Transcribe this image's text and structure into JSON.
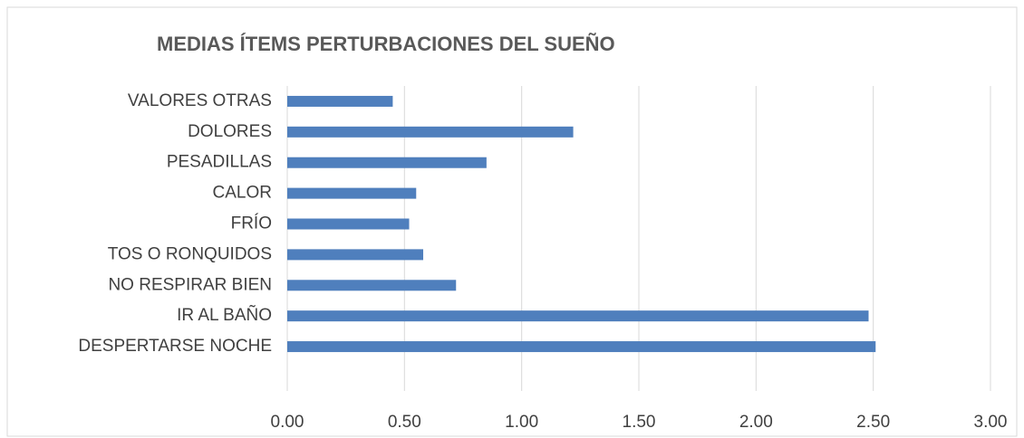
{
  "chart_data": {
    "type": "bar",
    "orientation": "horizontal",
    "title": "MEDIAS ÍTEMS PERTURBACIONES DEL SUEÑO",
    "categories": [
      "VALORES OTRAS",
      "DOLORES",
      "PESADILLAS",
      "CALOR",
      "FRÍO",
      "TOS O RONQUIDOS",
      "NO RESPIRAR BIEN",
      "IR AL BAÑO",
      "DESPERTARSE NOCHE"
    ],
    "values": [
      0.45,
      1.22,
      0.85,
      0.55,
      0.52,
      0.58,
      0.72,
      2.48,
      2.51
    ],
    "color": "#4f7fbd",
    "xlim": [
      0,
      3
    ],
    "xticks": [
      {
        "value": 0,
        "label": "0.00"
      },
      {
        "value": 0.5,
        "label": "0.50"
      },
      {
        "value": 1,
        "label": "1.00"
      },
      {
        "value": 1.5,
        "label": "1.50"
      },
      {
        "value": 2,
        "label": "2.00"
      },
      {
        "value": 2.5,
        "label": "2.50"
      },
      {
        "value": 3,
        "label": "3.00"
      }
    ],
    "grid": true
  }
}
